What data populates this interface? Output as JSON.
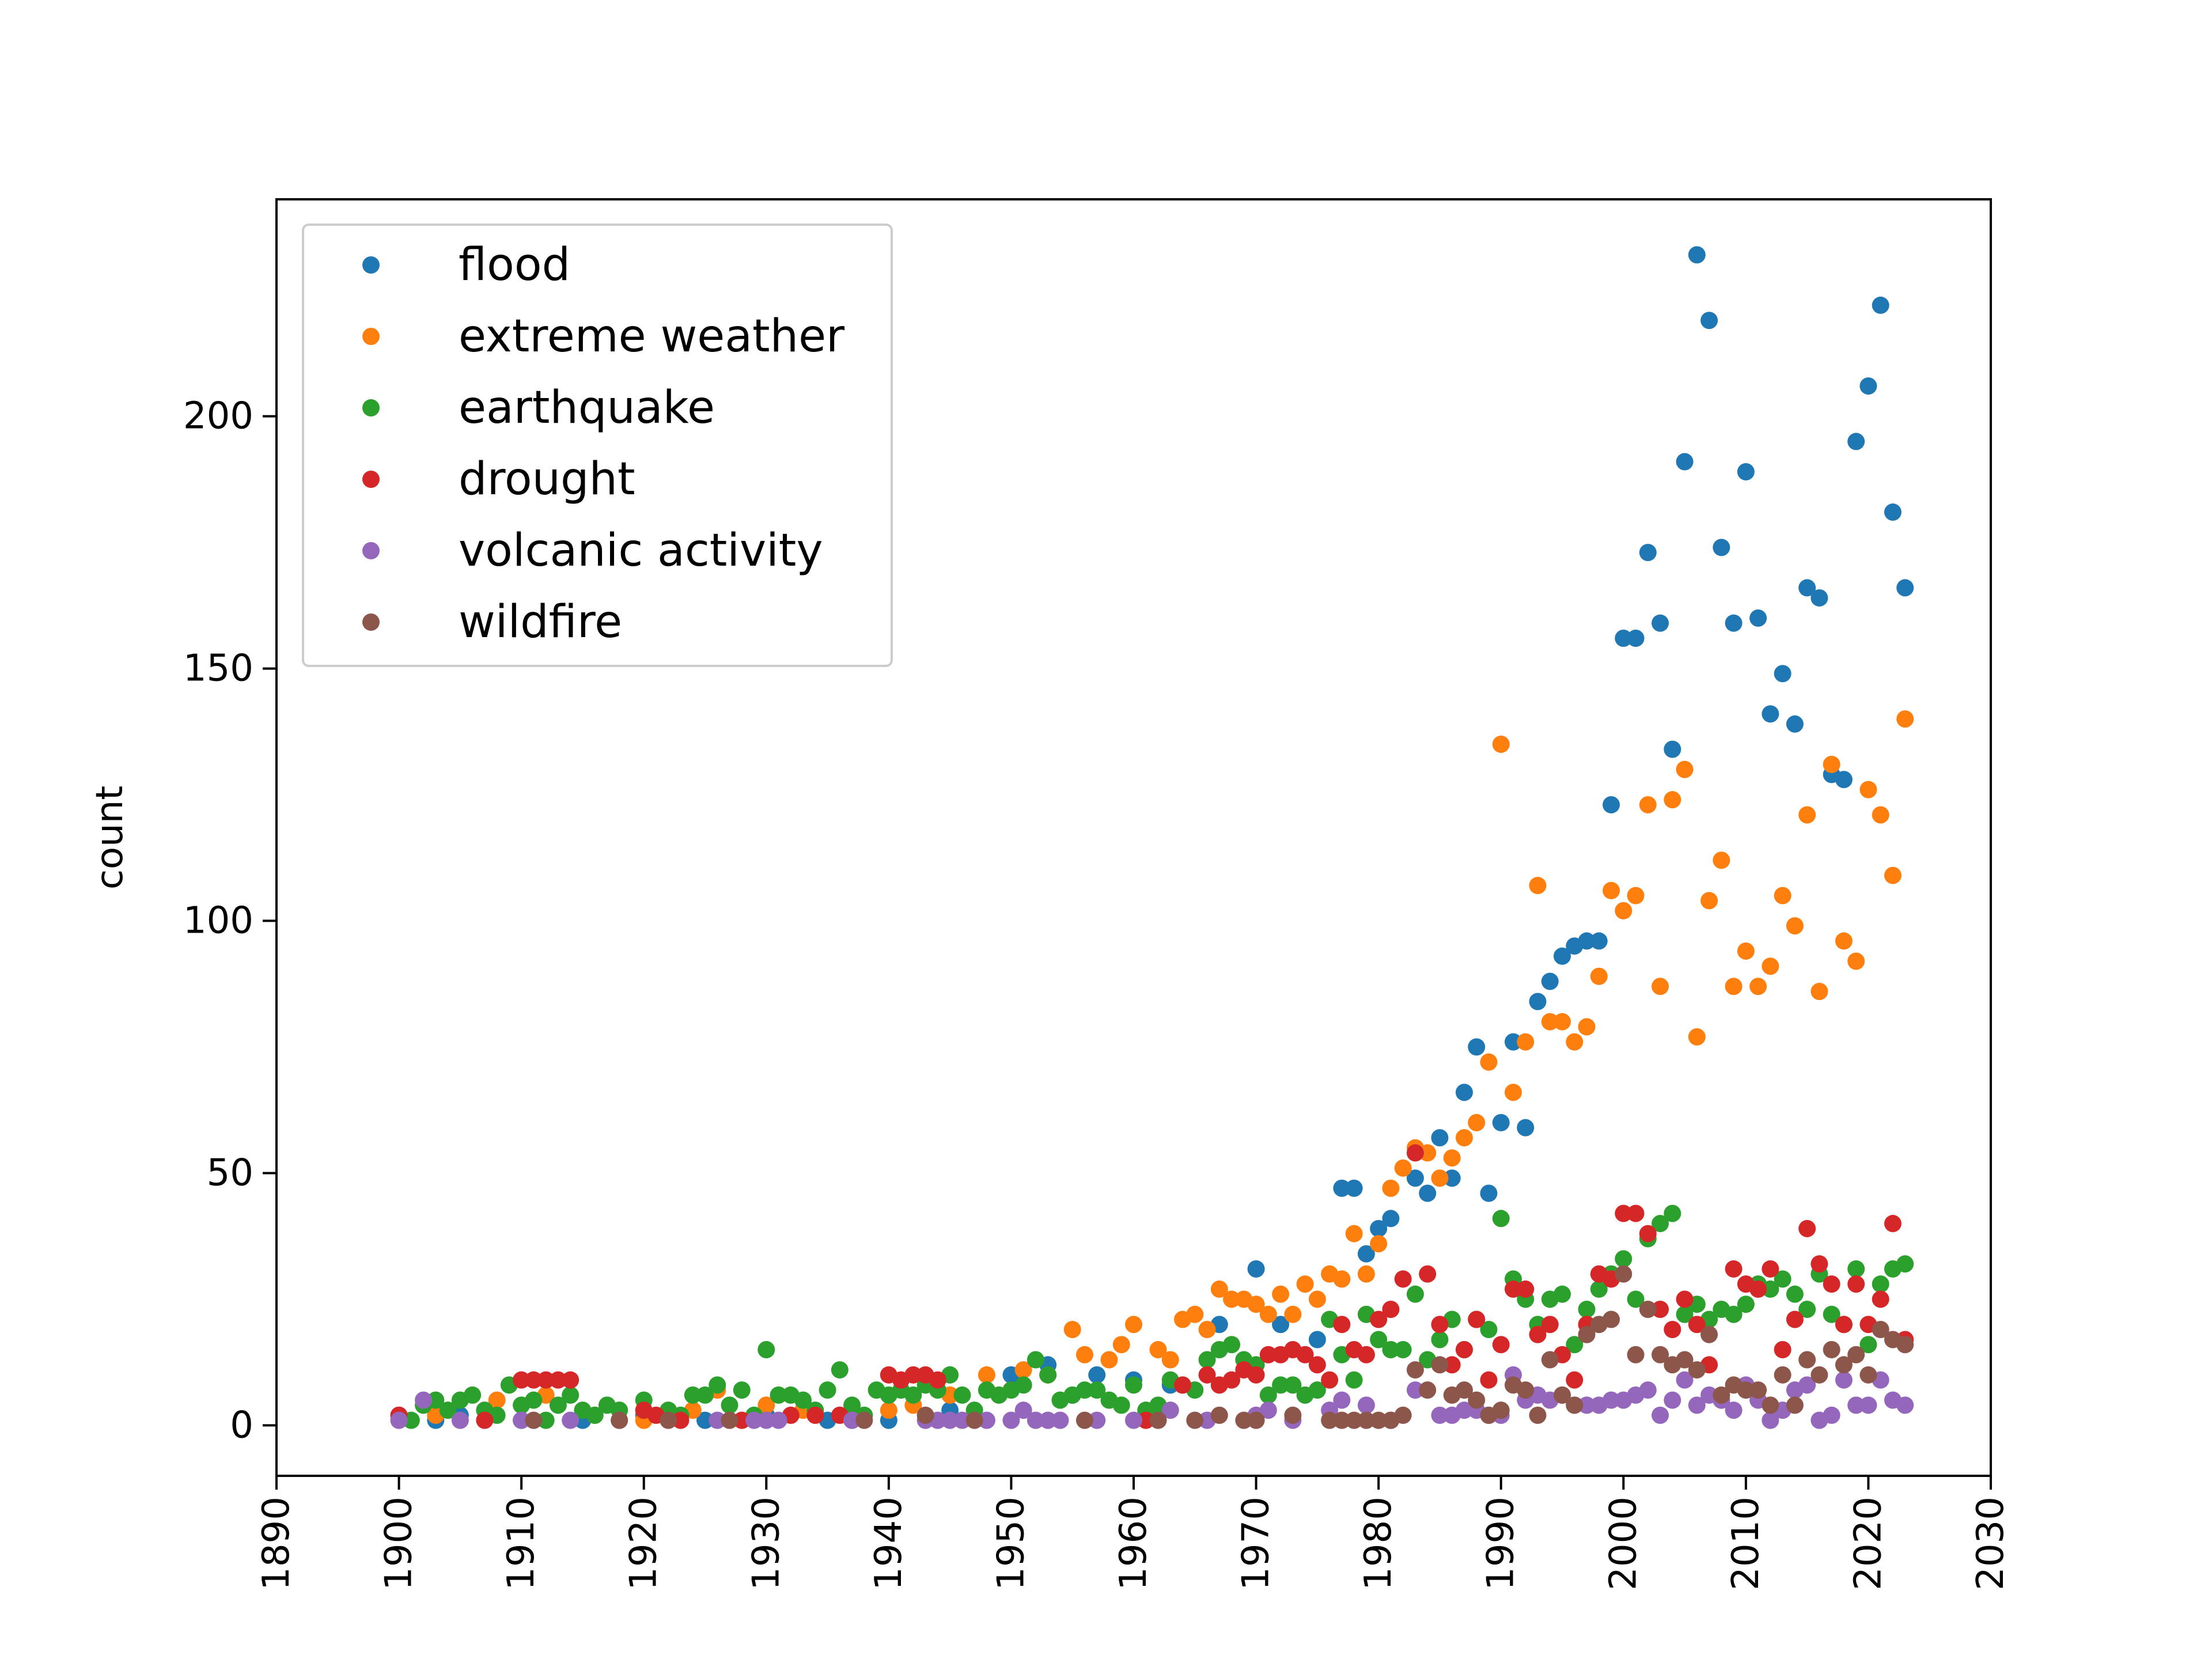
{
  "chart_data": {
    "type": "scatter",
    "title": "",
    "xlabel": "",
    "ylabel": "count",
    "xlim": [
      1890,
      2030
    ],
    "ylim": [
      -10,
      243
    ],
    "xticks": [
      1890,
      1900,
      1910,
      1920,
      1930,
      1940,
      1950,
      1960,
      1970,
      1980,
      1990,
      2000,
      2010,
      2020,
      2030
    ],
    "yticks": [
      0,
      50,
      100,
      150,
      200
    ],
    "xtick_rotation": 90,
    "grid": false,
    "legend": "upper-left",
    "series": [
      {
        "name": "flood",
        "color": "#1f77b4",
        "x": [
          1900,
          1903,
          1905,
          1910,
          1915,
          1920,
          1925,
          1930,
          1935,
          1940,
          1945,
          1950,
          1953,
          1955,
          1957,
          1960,
          1963,
          1967,
          1970,
          1972,
          1975,
          1977,
          1978,
          1979,
          1980,
          1981,
          1983,
          1984,
          1985,
          1986,
          1987,
          1988,
          1989,
          1990,
          1991,
          1992,
          1993,
          1994,
          1995,
          1996,
          1997,
          1998,
          1999,
          2000,
          2001,
          2002,
          2003,
          2004,
          2005,
          2006,
          2007,
          2008,
          2009,
          2010,
          2011,
          2012,
          2013,
          2014,
          2015,
          2016,
          2017,
          2018,
          2019,
          2020,
          2021,
          2022,
          2023
        ],
        "y": [
          2,
          1,
          2,
          1,
          1,
          2,
          1,
          2,
          1,
          1,
          3,
          10,
          12,
          6,
          10,
          9,
          8,
          20,
          31,
          20,
          17,
          47,
          47,
          34,
          39,
          41,
          49,
          46,
          57,
          49,
          66,
          75,
          46,
          60,
          76,
          59,
          84,
          88,
          93,
          95,
          96,
          96,
          123,
          156,
          156,
          173,
          159,
          134,
          191,
          232,
          219,
          174,
          159,
          189,
          160,
          141,
          149,
          139,
          166,
          164,
          129,
          128,
          195,
          206,
          222,
          181,
          166
        ]
      },
      {
        "name": "extreme weather",
        "color": "#ff7f0e",
        "x": [
          1900,
          1903,
          1908,
          1912,
          1916,
          1920,
          1924,
          1926,
          1930,
          1933,
          1937,
          1940,
          1942,
          1945,
          1948,
          1951,
          1953,
          1955,
          1956,
          1958,
          1959,
          1960,
          1962,
          1963,
          1964,
          1965,
          1966,
          1967,
          1968,
          1969,
          1970,
          1971,
          1972,
          1973,
          1974,
          1975,
          1976,
          1977,
          1978,
          1979,
          1980,
          1981,
          1982,
          1983,
          1984,
          1985,
          1986,
          1987,
          1988,
          1989,
          1990,
          1991,
          1992,
          1993,
          1994,
          1995,
          1996,
          1997,
          1998,
          1999,
          2000,
          2001,
          2002,
          2003,
          2004,
          2005,
          2006,
          2007,
          2008,
          2009,
          2010,
          2011,
          2012,
          2013,
          2014,
          2015,
          2016,
          2017,
          2018,
          2019,
          2020,
          2021,
          2022,
          2023
        ],
        "y": [
          1,
          2,
          5,
          6,
          2,
          1,
          3,
          7,
          4,
          3,
          3,
          3,
          4,
          6,
          10,
          11,
          10,
          19,
          14,
          13,
          16,
          20,
          15,
          13,
          21,
          22,
          19,
          27,
          25,
          25,
          24,
          22,
          26,
          22,
          28,
          25,
          30,
          29,
          38,
          30,
          36,
          47,
          51,
          55,
          54,
          49,
          53,
          57,
          60,
          72,
          135,
          66,
          76,
          107,
          80,
          80,
          76,
          79,
          89,
          106,
          102,
          105,
          123,
          87,
          124,
          130,
          77,
          104,
          112,
          87,
          94,
          87,
          91,
          105,
          99,
          121,
          86,
          131,
          96,
          92,
          126,
          121,
          109,
          140
        ]
      },
      {
        "name": "earthquake",
        "color": "#2ca02c",
        "x": [
          1901,
          1902,
          1903,
          1904,
          1905,
          1906,
          1907,
          1908,
          1909,
          1910,
          1911,
          1912,
          1913,
          1914,
          1915,
          1916,
          1917,
          1918,
          1920,
          1922,
          1923,
          1924,
          1925,
          1926,
          1927,
          1928,
          1929,
          1930,
          1931,
          1932,
          1933,
          1934,
          1935,
          1936,
          1937,
          1938,
          1939,
          1940,
          1941,
          1942,
          1943,
          1944,
          1945,
          1946,
          1947,
          1948,
          1949,
          1950,
          1951,
          1952,
          1953,
          1954,
          1955,
          1956,
          1957,
          1958,
          1959,
          1960,
          1961,
          1962,
          1963,
          1964,
          1965,
          1966,
          1967,
          1968,
          1969,
          1970,
          1971,
          1972,
          1973,
          1974,
          1975,
          1976,
          1977,
          1978,
          1979,
          1980,
          1981,
          1982,
          1983,
          1984,
          1985,
          1986,
          1987,
          1988,
          1989,
          1990,
          1991,
          1992,
          1993,
          1994,
          1995,
          1996,
          1997,
          1998,
          1999,
          2000,
          2001,
          2002,
          2003,
          2004,
          2005,
          2006,
          2007,
          2008,
          2009,
          2010,
          2011,
          2012,
          2013,
          2014,
          2015,
          2016,
          2017,
          2018,
          2019,
          2020,
          2021,
          2022,
          2023
        ],
        "y": [
          1,
          4,
          5,
          3,
          5,
          6,
          3,
          2,
          8,
          4,
          5,
          1,
          4,
          6,
          3,
          2,
          4,
          3,
          5,
          3,
          2,
          6,
          6,
          8,
          4,
          7,
          2,
          15,
          6,
          6,
          5,
          3,
          7,
          11,
          4,
          2,
          7,
          6,
          7,
          6,
          8,
          7,
          10,
          6,
          3,
          7,
          6,
          7,
          8,
          13,
          10,
          5,
          6,
          7,
          7,
          5,
          4,
          8,
          3,
          4,
          9,
          8,
          7,
          13,
          15,
          16,
          13,
          12,
          6,
          8,
          8,
          6,
          7,
          21,
          14,
          9,
          22,
          17,
          15,
          15,
          26,
          13,
          17,
          21,
          15,
          21,
          19,
          41,
          29,
          25,
          20,
          25,
          26,
          16,
          23,
          27,
          30,
          33,
          25,
          37,
          40,
          42,
          22,
          24,
          21,
          23,
          22,
          24,
          28,
          27,
          29,
          26,
          23,
          30,
          22,
          20,
          31,
          16,
          28,
          31,
          32
        ]
      },
      {
        "name": "drought",
        "color": "#d62728",
        "x": [
          1900,
          1907,
          1910,
          1911,
          1912,
          1913,
          1914,
          1920,
          1921,
          1923,
          1928,
          1932,
          1934,
          1936,
          1937,
          1940,
          1941,
          1942,
          1943,
          1944,
          1961,
          1964,
          1966,
          1967,
          1968,
          1969,
          1970,
          1971,
          1972,
          1973,
          1974,
          1975,
          1976,
          1977,
          1978,
          1979,
          1980,
          1981,
          1982,
          1983,
          1984,
          1985,
          1986,
          1987,
          1988,
          1989,
          1990,
          1991,
          1992,
          1993,
          1994,
          1995,
          1996,
          1997,
          1998,
          1999,
          2000,
          2001,
          2002,
          2003,
          2004,
          2005,
          2006,
          2007,
          2008,
          2009,
          2010,
          2011,
          2012,
          2013,
          2014,
          2015,
          2016,
          2017,
          2018,
          2019,
          2020,
          2021,
          2022,
          2023
        ],
        "y": [
          2,
          1,
          9,
          9,
          9,
          9,
          9,
          3,
          2,
          1,
          1,
          2,
          2,
          2,
          1,
          10,
          9,
          10,
          10,
          9,
          1,
          8,
          10,
          8,
          9,
          11,
          10,
          14,
          14,
          15,
          14,
          12,
          9,
          20,
          15,
          14,
          21,
          23,
          29,
          54,
          30,
          20,
          12,
          15,
          21,
          9,
          16,
          27,
          27,
          18,
          20,
          14,
          9,
          20,
          30,
          29,
          42,
          42,
          38,
          23,
          19,
          25,
          20,
          12,
          5,
          31,
          28,
          27,
          31,
          15,
          21,
          39,
          32,
          28,
          20,
          28,
          20,
          25,
          40,
          17
        ]
      },
      {
        "name": "volcanic activity",
        "color": "#9467bd",
        "x": [
          1900,
          1902,
          1905,
          1910,
          1914,
          1918,
          1926,
          1929,
          1930,
          1931,
          1937,
          1943,
          1944,
          1945,
          1946,
          1948,
          1950,
          1951,
          1952,
          1953,
          1954,
          1957,
          1960,
          1963,
          1966,
          1970,
          1971,
          1973,
          1976,
          1977,
          1979,
          1981,
          1983,
          1985,
          1986,
          1987,
          1988,
          1989,
          1990,
          1991,
          1992,
          1993,
          1994,
          1995,
          1996,
          1997,
          1998,
          1999,
          2000,
          2001,
          2002,
          2003,
          2004,
          2005,
          2006,
          2007,
          2008,
          2009,
          2010,
          2011,
          2012,
          2013,
          2014,
          2015,
          2016,
          2017,
          2018,
          2019,
          2020,
          2021,
          2022,
          2023
        ],
        "y": [
          1,
          5,
          1,
          1,
          1,
          1,
          1,
          1,
          1,
          1,
          1,
          1,
          1,
          1,
          1,
          1,
          1,
          3,
          1,
          1,
          1,
          1,
          1,
          3,
          1,
          2,
          3,
          1,
          3,
          5,
          4,
          1,
          7,
          2,
          2,
          3,
          3,
          2,
          2,
          10,
          5,
          6,
          5,
          6,
          4,
          4,
          4,
          5,
          5,
          6,
          7,
          2,
          5,
          9,
          4,
          6,
          5,
          3,
          8,
          5,
          1,
          3,
          7,
          8,
          1,
          2,
          9,
          4,
          4,
          9,
          5,
          4
        ]
      },
      {
        "name": "wildfire",
        "color": "#8c564b",
        "x": [
          1911,
          1918,
          1922,
          1927,
          1938,
          1943,
          1947,
          1956,
          1962,
          1965,
          1967,
          1969,
          1970,
          1973,
          1976,
          1977,
          1978,
          1979,
          1980,
          1981,
          1982,
          1983,
          1984,
          1985,
          1986,
          1987,
          1988,
          1989,
          1990,
          1991,
          1992,
          1993,
          1994,
          1995,
          1996,
          1997,
          1998,
          1999,
          2000,
          2001,
          2002,
          2003,
          2004,
          2005,
          2006,
          2007,
          2008,
          2009,
          2010,
          2011,
          2012,
          2013,
          2014,
          2015,
          2016,
          2017,
          2018,
          2019,
          2020,
          2021,
          2022,
          2023
        ],
        "y": [
          1,
          1,
          1,
          1,
          1,
          2,
          1,
          1,
          1,
          1,
          2,
          1,
          1,
          2,
          1,
          1,
          1,
          1,
          1,
          1,
          2,
          11,
          7,
          12,
          6,
          7,
          5,
          2,
          3,
          8,
          7,
          2,
          13,
          6,
          4,
          18,
          20,
          21,
          30,
          14,
          23,
          14,
          12,
          13,
          11,
          18,
          6,
          8,
          7,
          7,
          4,
          10,
          4,
          13,
          10,
          15,
          12,
          14,
          10,
          19,
          17,
          16
        ]
      }
    ]
  }
}
